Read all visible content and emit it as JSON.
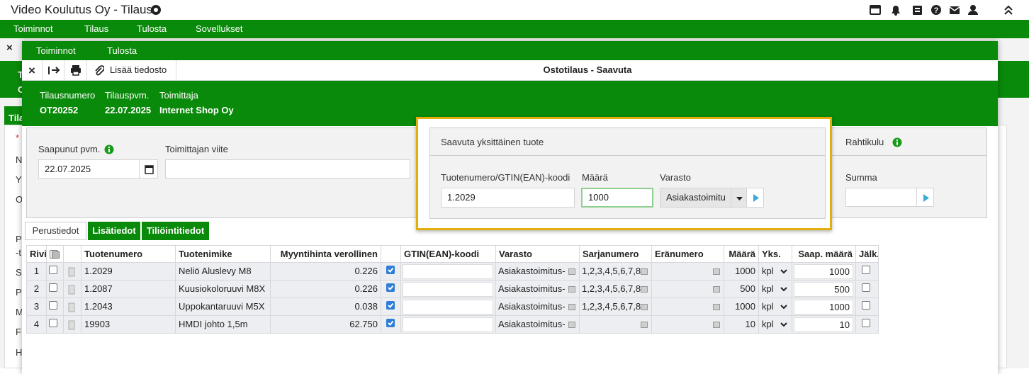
{
  "app": {
    "title": "Video Koulutus Oy - Tilaus",
    "menu": [
      "Toiminnot",
      "Tilaus",
      "Tulosta",
      "Sovellukset"
    ]
  },
  "background": {
    "fragments": [
      "T",
      "O",
      "Tila",
      "*",
      "N",
      "Y",
      "O",
      "P",
      "-t",
      "S",
      "P",
      "M",
      "F",
      "H"
    ]
  },
  "dialog": {
    "menu": [
      "Toiminnot",
      "Tulosta"
    ],
    "attach": "Lisää tiedosto",
    "title": "Ostotilaus - Saavuta",
    "header": [
      {
        "label": "Tilausnumero",
        "value": "OT20252"
      },
      {
        "label": "Tilauspvm.",
        "value": "22.07.2025"
      },
      {
        "label": "Toimittaja",
        "value": "Internet Shop Oy"
      }
    ],
    "form": {
      "arrival_label": "Saapunut pvm.",
      "arrival": "22.07.2025",
      "supplier_ref_label": "Toimittajan viite"
    },
    "single": {
      "title": "Saavuta yksittäinen tuote",
      "product_label": "Tuotenumero/GTIN(EAN)-koodi",
      "product": "1.2029",
      "quantity_label": "Määrä",
      "quantity": "1000",
      "warehouse_label": "Varasto",
      "warehouse": "Asiakastoimitu"
    },
    "freight": {
      "title": "Rahtikulu",
      "sum_label": "Summa"
    },
    "tabs": [
      "Perustiedot",
      "Lisätiedot",
      "Tiliöintitiedot"
    ],
    "table": {
      "headers": {
        "rivi": "Rivi",
        "product": "Tuotenumero",
        "name": "Tuotenimike",
        "price": "Myyntihinta verollinen",
        "gtin": "GTIN(EAN)-koodi",
        "warehouse": "Varasto",
        "serial": "Sarjanumero",
        "batch": "Eränumero",
        "quantity": "Määrä",
        "unit": "Yks.",
        "received": "Saap. määrä",
        "followup": "Jälk."
      },
      "rows": [
        {
          "rivi": "1",
          "selected": false,
          "product": "1.2029",
          "name": "Neliö Aluslevy M8",
          "price": "0.226",
          "vat_included": true,
          "warehouse": "Asiakastoimitus-",
          "serial": "1,2,3,4,5,6,7,8",
          "quantity": "1000",
          "unit": "kpl",
          "received": "1000",
          "followup": false
        },
        {
          "rivi": "2",
          "selected": false,
          "product": "1.2087",
          "name": "Kuusiokoloruuvi M8X",
          "price": "0.226",
          "vat_included": true,
          "warehouse": "Asiakastoimitus-",
          "serial": "1,2,3,4,5,6,7,8",
          "quantity": "500",
          "unit": "kpl",
          "received": "500",
          "followup": false
        },
        {
          "rivi": "3",
          "selected": false,
          "product": "1.2043",
          "name": "Uppokantaruuvi M5X",
          "price": "0.038",
          "vat_included": true,
          "warehouse": "Asiakastoimitus-",
          "serial": "1,2,3,4,5,6,7,8",
          "quantity": "1000",
          "unit": "kpl",
          "received": "1000",
          "followup": false
        },
        {
          "rivi": "4",
          "selected": false,
          "product": "19903",
          "name": "HMDI johto 1,5m",
          "price": "62.750",
          "vat_included": true,
          "warehouse": "Asiakastoimitus-",
          "quantity": "10",
          "unit": "kpl",
          "received": "10",
          "followup": false
        }
      ]
    }
  }
}
